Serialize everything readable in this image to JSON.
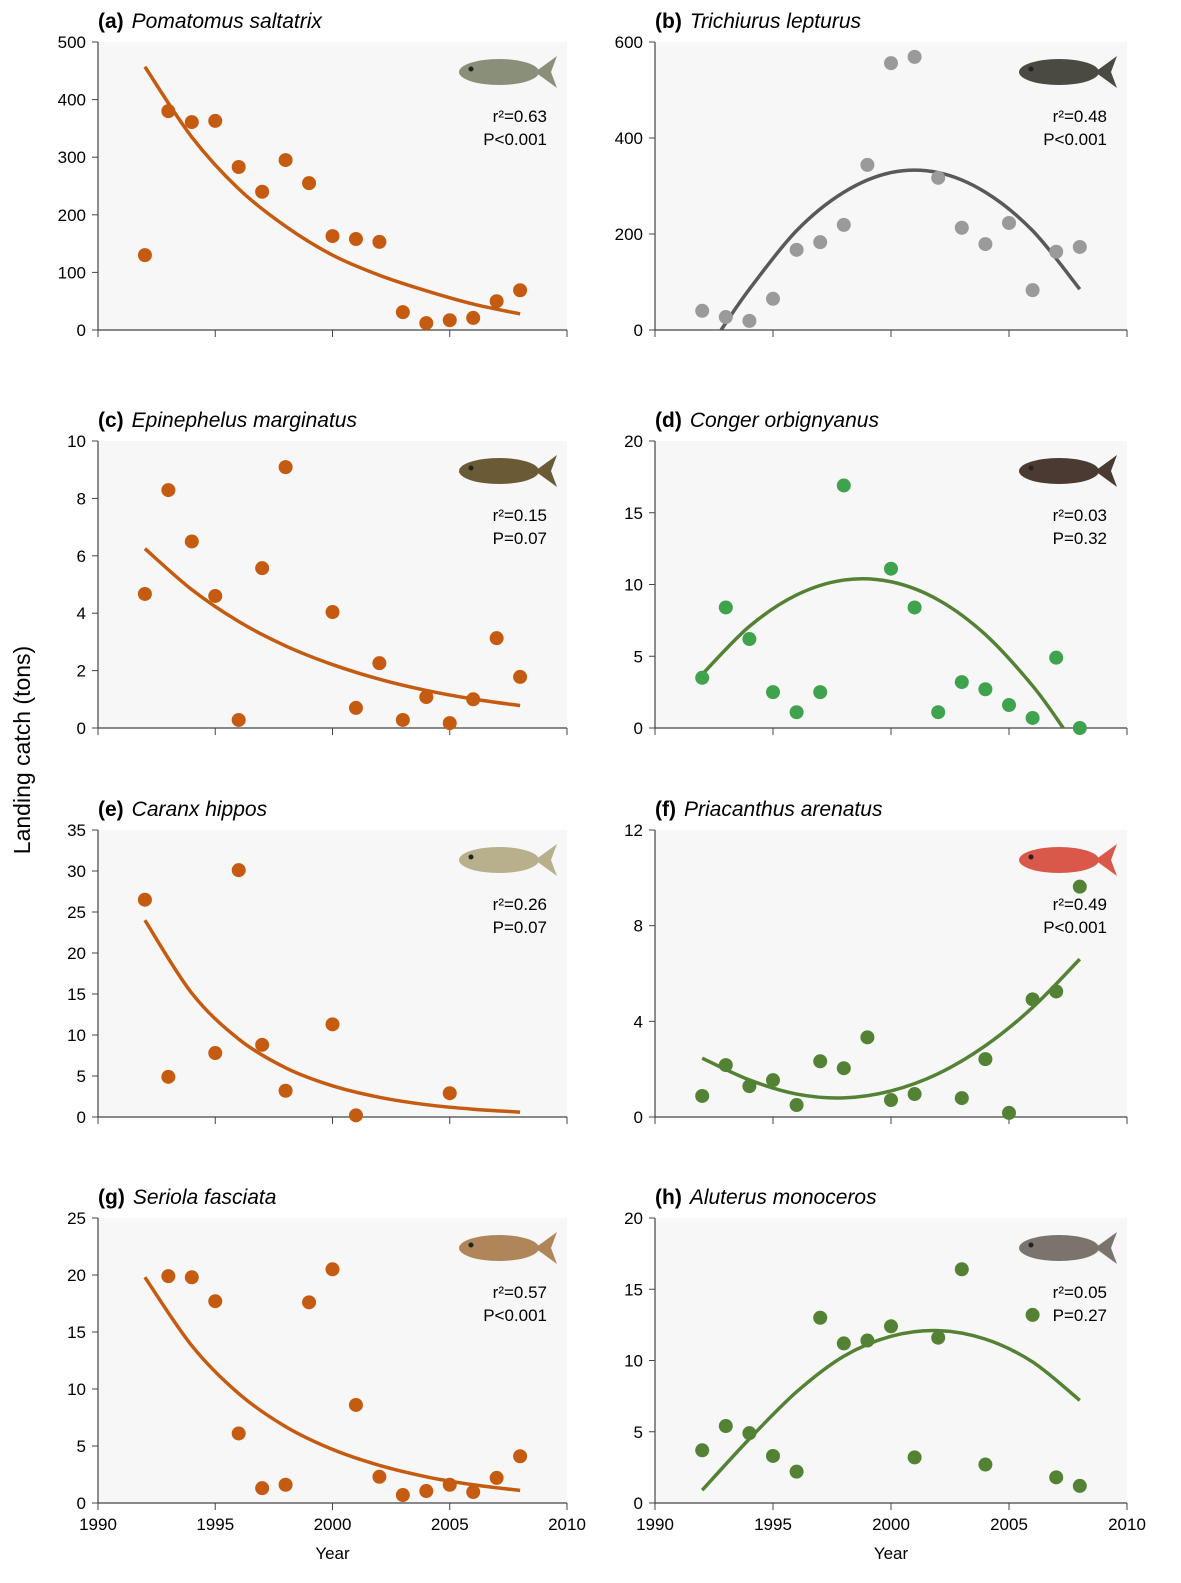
{
  "ylabel": "Landing catch (tons)",
  "chart_data": [
    {
      "type": "scatter",
      "label": "(a)",
      "title": "Pomatomus saltatrix",
      "stats": [
        "r²=0.63",
        "P<0.001"
      ],
      "x": [
        1992,
        1993,
        1994,
        1995,
        1996,
        1997,
        1998,
        1999,
        2000,
        2001,
        2002,
        2003,
        2004,
        2005,
        2006,
        2007,
        2008
      ],
      "values": [
        130,
        380,
        361,
        363,
        283,
        240,
        295,
        255,
        163,
        158,
        153,
        31,
        12,
        17,
        21,
        50,
        69
      ],
      "color": "#c55a11",
      "fit": {
        "color": "#c55a11",
        "x": [
          1992,
          1994,
          1996,
          1998,
          2000,
          2002,
          2004,
          2006,
          2008
        ],
        "values": [
          457,
          335,
          245,
          180,
          130,
          95,
          68,
          45,
          28
        ]
      },
      "xlim": [
        1990,
        2010
      ],
      "xticks": [
        1990,
        1995,
        2000,
        2005,
        2010
      ],
      "show_xtick_labels": false,
      "ylim": [
        0,
        500
      ],
      "yticks": [
        0,
        100,
        200,
        300,
        400,
        500
      ]
    },
    {
      "type": "scatter",
      "label": "(b)",
      "title": "Trichiurus lepturus",
      "stats": [
        "r²=0.48",
        "P<0.001"
      ],
      "x": [
        1992,
        1993,
        1994,
        1995,
        1996,
        1997,
        1998,
        1999,
        2000,
        2001,
        2002,
        2003,
        2004,
        2005,
        2006,
        2007,
        2008
      ],
      "values": [
        40,
        27,
        19,
        65,
        167,
        183,
        219,
        344,
        556,
        569,
        317,
        213,
        179,
        223,
        83,
        163,
        173
      ],
      "color": "#9a9a9a",
      "fit": {
        "color": "#595959",
        "x": [
          1992.8,
          1994,
          1996,
          1998,
          2000,
          2002,
          2004,
          2006,
          2008
        ],
        "values": [
          0,
          85,
          207,
          287,
          328,
          328,
          287,
          207,
          85
        ]
      },
      "xlim": [
        1990,
        2010
      ],
      "xticks": [
        1990,
        1995,
        2000,
        2005,
        2010
      ],
      "show_xtick_labels": false,
      "ylim": [
        0,
        600
      ],
      "yticks": [
        0,
        200,
        400,
        600
      ]
    },
    {
      "type": "scatter",
      "label": "(c)",
      "title": "Epinephelus marginatus",
      "stats": [
        "r²=0.15",
        "P=0.07"
      ],
      "x": [
        1992,
        1993,
        1994,
        1995,
        1996,
        1997,
        1998,
        2000,
        2001,
        2002,
        2003,
        2004,
        2005,
        2006,
        2007,
        2008
      ],
      "values": [
        4.67,
        8.29,
        6.5,
        4.6,
        0.28,
        5.57,
        9.09,
        4.04,
        0.7,
        2.26,
        0.28,
        1.08,
        0.17,
        1.0,
        3.13,
        1.78
      ],
      "color": "#c55a11",
      "fit": {
        "color": "#c55a11",
        "x": [
          1992,
          1994,
          1996,
          1998,
          2000,
          2002,
          2004,
          2006,
          2008
        ],
        "values": [
          6.25,
          4.82,
          3.71,
          2.86,
          2.21,
          1.7,
          1.31,
          1.01,
          0.78
        ]
      },
      "xlim": [
        1990,
        2010
      ],
      "xticks": [
        1990,
        1995,
        2000,
        2005,
        2010
      ],
      "show_xtick_labels": false,
      "ylim": [
        0,
        10
      ],
      "yticks": [
        0,
        2,
        4,
        6,
        8,
        10
      ]
    },
    {
      "type": "scatter",
      "label": "(d)",
      "title": "Conger orbignyanus",
      "stats": [
        "r²=0.03",
        "P=0.32"
      ],
      "x": [
        1992,
        1993,
        1994,
        1995,
        1996,
        1997,
        1998,
        2000,
        2001,
        2002,
        2003,
        2004,
        2005,
        2006,
        2007,
        2008
      ],
      "values": [
        3.5,
        8.4,
        6.2,
        2.5,
        1.1,
        2.5,
        16.9,
        11.1,
        8.4,
        1.1,
        3.2,
        2.7,
        1.6,
        0.7,
        4.9,
        0.0
      ],
      "color": "#3fa34d",
      "fit": {
        "color": "#548235",
        "x": [
          1992,
          1994,
          1996,
          1998,
          2000,
          2002,
          2004,
          2006,
          2007.3
        ],
        "values": [
          3.74,
          7.08,
          9.27,
          10.31,
          10.19,
          8.93,
          6.51,
          2.94,
          0
        ]
      },
      "xlim": [
        1990,
        2010
      ],
      "xticks": [
        1990,
        1995,
        2000,
        2005,
        2010
      ],
      "show_xtick_labels": false,
      "ylim": [
        0,
        20
      ],
      "yticks": [
        0,
        5,
        10,
        15,
        20
      ]
    },
    {
      "type": "scatter",
      "label": "(e)",
      "title": "Caranx hippos",
      "stats": [
        "r²=0.26",
        "P=0.07"
      ],
      "x": [
        1992,
        1993,
        1995,
        1996,
        1997,
        1998,
        2000,
        2001,
        2005
      ],
      "values": [
        26.5,
        4.9,
        7.8,
        30.1,
        8.8,
        3.2,
        11.3,
        0.2,
        2.9
      ],
      "color": "#c55a11",
      "fit": {
        "color": "#c55a11",
        "x": [
          1992,
          1994,
          1996,
          1998,
          2000,
          2002,
          2004,
          2006,
          2008
        ],
        "values": [
          24,
          15.1,
          9.5,
          6.0,
          3.8,
          2.4,
          1.5,
          0.95,
          0.6
        ]
      },
      "xlim": [
        1990,
        2010
      ],
      "xticks": [
        1990,
        1995,
        2000,
        2005,
        2010
      ],
      "show_xtick_labels": false,
      "ylim": [
        0,
        35
      ],
      "yticks": [
        0,
        5,
        10,
        15,
        20,
        25,
        30,
        35
      ]
    },
    {
      "type": "scatter",
      "label": "(f)",
      "title": "Priacanthus arenatus",
      "stats": [
        "r²=0.49",
        "P<0.001"
      ],
      "x": [
        1992,
        1993,
        1994,
        1995,
        1996,
        1997,
        1998,
        1999,
        2000,
        2001,
        2003,
        2004,
        2005,
        2006,
        2007,
        2008
      ],
      "values": [
        0.88,
        2.17,
        1.29,
        1.54,
        0.5,
        2.33,
        2.04,
        3.33,
        0.71,
        0.96,
        0.79,
        2.42,
        0.17,
        4.92,
        5.25,
        9.63
      ],
      "color": "#548235",
      "fit": {
        "color": "#548235",
        "x": [
          1992,
          1994,
          1996,
          1998,
          2000,
          2002,
          2004,
          2006,
          2008
        ],
        "values": [
          2.46,
          1.55,
          0.96,
          0.8,
          1.09,
          1.81,
          2.98,
          4.58,
          6.6
        ]
      },
      "xlim": [
        1990,
        2010
      ],
      "xticks": [
        1990,
        1995,
        2000,
        2005,
        2010
      ],
      "show_xtick_labels": false,
      "ylim": [
        0,
        12
      ],
      "yticks": [
        0,
        4,
        8,
        12
      ]
    },
    {
      "type": "scatter",
      "label": "(g)",
      "title": "Seriola fasciata",
      "stats": [
        "r²=0.57",
        "P<0.001"
      ],
      "x": [
        1993,
        1994,
        1995,
        1996,
        1997,
        1998,
        1999,
        2000,
        2001,
        2002,
        2003,
        2004,
        2005,
        2006,
        2007,
        2008
      ],
      "values": [
        19.9,
        19.8,
        17.7,
        6.1,
        1.3,
        1.6,
        17.6,
        20.5,
        8.6,
        2.3,
        0.7,
        1.05,
        1.6,
        0.96,
        2.2,
        4.1
      ],
      "color": "#c55a11",
      "fit": {
        "color": "#c55a11",
        "x": [
          1992,
          1994,
          1996,
          1998,
          2000,
          2002,
          2004,
          2006,
          2008
        ],
        "values": [
          19.8,
          13.8,
          9.6,
          6.7,
          4.7,
          3.3,
          2.3,
          1.6,
          1.1
        ]
      },
      "xlim": [
        1990,
        2010
      ],
      "xticks": [
        1990,
        1995,
        2000,
        2005,
        2010
      ],
      "show_xtick_labels": true,
      "xlabel": "Year",
      "ylim": [
        0,
        25
      ],
      "yticks": [
        0,
        5,
        10,
        15,
        20,
        25
      ]
    },
    {
      "type": "scatter",
      "label": "(h)",
      "title": "Aluterus monoceros",
      "stats": [
        "r²=0.05",
        "P=0.27"
      ],
      "x": [
        1992,
        1993,
        1994,
        1995,
        1996,
        1997,
        1998,
        1999,
        2000,
        2001,
        2002,
        2003,
        2004,
        2006,
        2007,
        2008
      ],
      "values": [
        3.7,
        5.4,
        4.9,
        3.3,
        2.2,
        13.0,
        11.2,
        11.4,
        12.4,
        3.2,
        11.6,
        16.4,
        2.7,
        13.2,
        1.8,
        1.2
      ],
      "color": "#548235",
      "fit": {
        "color": "#548235",
        "x": [
          1992,
          1994,
          1996,
          1998,
          2000,
          2002,
          2004,
          2006,
          2008
        ],
        "values": [
          0.9,
          4.5,
          7.8,
          10.3,
          11.7,
          12.1,
          11.5,
          9.9,
          7.2
        ]
      },
      "xlim": [
        1990,
        2010
      ],
      "xticks": [
        1990,
        1995,
        2000,
        2005,
        2010
      ],
      "show_xtick_labels": true,
      "xlabel": "Year",
      "ylim": [
        0,
        20
      ],
      "yticks": [
        0,
        5,
        10,
        15,
        20
      ]
    }
  ]
}
